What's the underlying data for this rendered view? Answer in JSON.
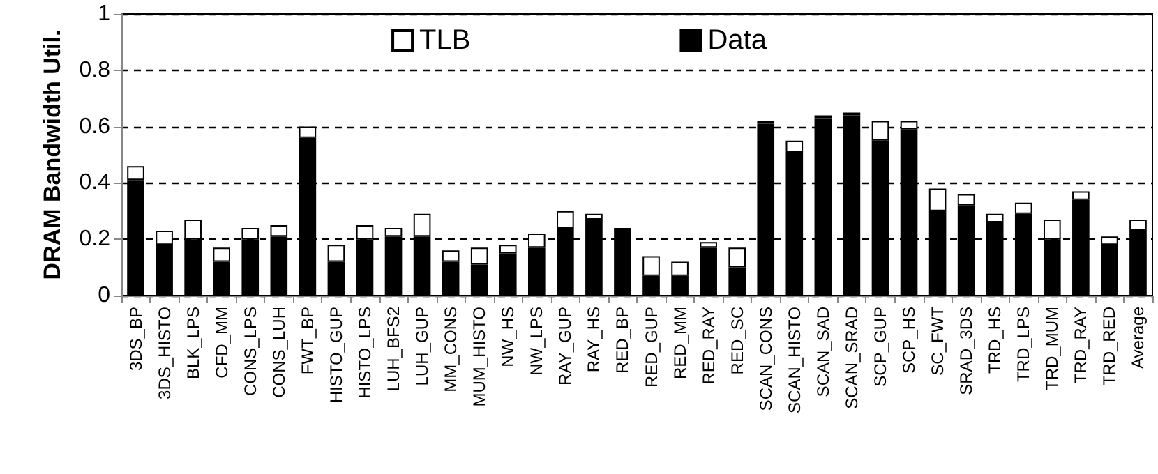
{
  "chart_data": {
    "type": "bar",
    "stacked": true,
    "ylabel": "DRAM Bandwidth Util.",
    "categories": [
      "3DS_BP",
      "3DS_HISTO",
      "BLK_LPS",
      "CFD_MM",
      "CONS_LPS",
      "CONS_LUH",
      "FWT_BP",
      "HISTO_GUP",
      "HISTO_LPS",
      "LUH_BFS2",
      "LUH_GUP",
      "MM_CONS",
      "MUM_HISTO",
      "NW_HS",
      "NW_LPS",
      "RAY_GUP",
      "RAY_HS",
      "RED_BP",
      "RED_GUP",
      "RED_MM",
      "RED_RAY",
      "RED_SC",
      "SCAN_CONS",
      "SCAN_HISTO",
      "SCAN_SAD",
      "SCAN_SRAD",
      "SCP_GUP",
      "SCP_HS",
      "SC_FWT",
      "SRAD_3DS",
      "TRD_HS",
      "TRD_LPS",
      "TRD_MUM",
      "TRD_RAY",
      "TRD_RED",
      "Average"
    ],
    "series": [
      {
        "name": "Data",
        "color": "#000000",
        "values": [
          0.41,
          0.18,
          0.2,
          0.12,
          0.2,
          0.21,
          0.56,
          0.12,
          0.2,
          0.21,
          0.21,
          0.12,
          0.11,
          0.15,
          0.17,
          0.24,
          0.27,
          0.23,
          0.07,
          0.07,
          0.17,
          0.1,
          0.61,
          0.51,
          0.63,
          0.64,
          0.55,
          0.59,
          0.3,
          0.32,
          0.26,
          0.29,
          0.2,
          0.34,
          0.18,
          0.23
        ]
      },
      {
        "name": "TLB",
        "color": "#ffffff",
        "values": [
          0.05,
          0.05,
          0.07,
          0.05,
          0.04,
          0.04,
          0.04,
          0.06,
          0.05,
          0.03,
          0.08,
          0.04,
          0.06,
          0.03,
          0.05,
          0.06,
          0.02,
          0.01,
          0.07,
          0.05,
          0.02,
          0.07,
          0.01,
          0.04,
          0.01,
          0.01,
          0.07,
          0.03,
          0.08,
          0.04,
          0.03,
          0.04,
          0.07,
          0.03,
          0.03,
          0.04
        ]
      }
    ],
    "ylim": [
      0,
      1
    ],
    "yticks": [
      0,
      0.2,
      0.4,
      0.6,
      0.8,
      1
    ],
    "grid": "y",
    "legend": "top"
  }
}
